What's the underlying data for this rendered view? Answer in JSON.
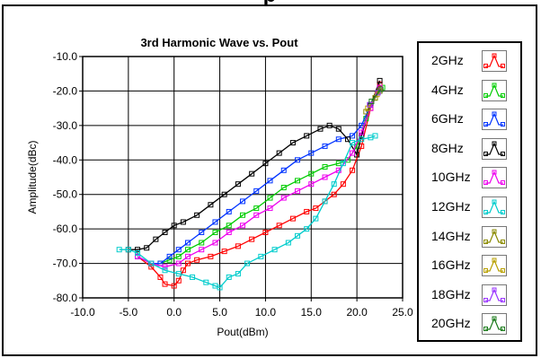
{
  "page_title_partial": "p",
  "chart_data": {
    "type": "scatter",
    "title": "3rd Harmonic Wave vs. Pout",
    "xlabel": "Pout(dBm)",
    "ylabel": "Amplitude(dBc)",
    "xlim": [
      -10,
      25
    ],
    "ylim": [
      -80,
      -10
    ],
    "x_ticks": [
      "-10.0",
      "-5.0",
      "0.0",
      "5.0",
      "10.0",
      "15.0",
      "20.0",
      "25.0"
    ],
    "y_ticks": [
      "-10.0",
      "-20.0",
      "-30.0",
      "-40.0",
      "-50.0",
      "-60.0",
      "-70.0",
      "-80.0"
    ],
    "grid": true,
    "legend_position": "right",
    "series": [
      {
        "name": "2GHz",
        "color": "#ff0000",
        "points": [
          [
            -4,
            -68
          ],
          [
            -2.5,
            -71
          ],
          [
            -1.5,
            -74
          ],
          [
            -1,
            -76
          ],
          [
            0,
            -76.5
          ],
          [
            0.5,
            -75
          ],
          [
            1,
            -72
          ],
          [
            1.5,
            -70
          ],
          [
            2.5,
            -69
          ],
          [
            4,
            -68
          ],
          [
            5.5,
            -66.5
          ],
          [
            7,
            -65
          ],
          [
            8.5,
            -63
          ],
          [
            10,
            -61
          ],
          [
            11.5,
            -59
          ],
          [
            13,
            -57
          ],
          [
            14.5,
            -55
          ],
          [
            15.5,
            -54
          ],
          [
            16.5,
            -52
          ],
          [
            17.5,
            -50
          ],
          [
            18.5,
            -47
          ],
          [
            19.5,
            -43
          ],
          [
            20.5,
            -36
          ],
          [
            21.5,
            -25
          ],
          [
            22.5,
            -18
          ]
        ]
      },
      {
        "name": "4GHz",
        "color": "#00cc00",
        "points": [
          [
            -4,
            -68
          ],
          [
            -2.5,
            -70
          ],
          [
            -1.5,
            -70
          ],
          [
            -0.5,
            -69
          ],
          [
            0.5,
            -68
          ],
          [
            1.5,
            -66
          ],
          [
            3,
            -64
          ],
          [
            4.5,
            -61
          ],
          [
            6,
            -59
          ],
          [
            7.5,
            -56
          ],
          [
            9,
            -54
          ],
          [
            10.5,
            -51
          ],
          [
            12,
            -48
          ],
          [
            13.5,
            -46
          ],
          [
            15,
            -44
          ],
          [
            16.5,
            -42
          ],
          [
            18,
            -41
          ],
          [
            19,
            -40
          ],
          [
            20,
            -36
          ],
          [
            21,
            -28
          ],
          [
            22,
            -22
          ],
          [
            22.8,
            -19
          ]
        ]
      },
      {
        "name": "6GHz",
        "color": "#0033ff",
        "points": [
          [
            -4,
            -68
          ],
          [
            -2.5,
            -70
          ],
          [
            -1.5,
            -70
          ],
          [
            -0.5,
            -68
          ],
          [
            0.5,
            -66
          ],
          [
            1.5,
            -64
          ],
          [
            3,
            -61
          ],
          [
            4.5,
            -58
          ],
          [
            6,
            -55
          ],
          [
            7.5,
            -52
          ],
          [
            9,
            -49
          ],
          [
            10.5,
            -46
          ],
          [
            12,
            -43
          ],
          [
            13.5,
            -40
          ],
          [
            15,
            -38
          ],
          [
            16.5,
            -36
          ],
          [
            18,
            -34
          ],
          [
            19.5,
            -33
          ],
          [
            20.5,
            -30
          ],
          [
            21.5,
            -24
          ],
          [
            22.5,
            -20
          ]
        ]
      },
      {
        "name": "8GHz",
        "color": "#000000",
        "points": [
          [
            -5,
            -66
          ],
          [
            -4,
            -66
          ],
          [
            -3,
            -65.5
          ],
          [
            -2,
            -63
          ],
          [
            -1,
            -61
          ],
          [
            0,
            -59
          ],
          [
            1,
            -58
          ],
          [
            2.5,
            -56
          ],
          [
            4,
            -53
          ],
          [
            5.5,
            -50
          ],
          [
            7,
            -47
          ],
          [
            8.5,
            -44
          ],
          [
            10,
            -41
          ],
          [
            11.5,
            -38
          ],
          [
            13,
            -35
          ],
          [
            14.5,
            -33
          ],
          [
            16,
            -31
          ],
          [
            17,
            -30
          ],
          [
            18,
            -31
          ],
          [
            19,
            -34
          ],
          [
            20,
            -38.5
          ],
          [
            20.5,
            -33
          ],
          [
            21.5,
            -24
          ],
          [
            22.5,
            -17
          ]
        ]
      },
      {
        "name": "10GHz",
        "color": "#ee00ee",
        "points": [
          [
            -4,
            -68
          ],
          [
            -2.5,
            -70
          ],
          [
            -1,
            -71
          ],
          [
            0.5,
            -70
          ],
          [
            1.5,
            -68
          ],
          [
            3,
            -66
          ],
          [
            4.5,
            -64
          ],
          [
            6,
            -61
          ],
          [
            7.5,
            -59
          ],
          [
            9,
            -56
          ],
          [
            10.5,
            -54
          ],
          [
            12,
            -51
          ],
          [
            13.5,
            -49
          ],
          [
            15,
            -47
          ],
          [
            16.5,
            -45
          ],
          [
            18,
            -43
          ],
          [
            19.5,
            -38
          ],
          [
            20.5,
            -32
          ],
          [
            21.5,
            -25
          ],
          [
            22.5,
            -19
          ]
        ]
      },
      {
        "name": "12GHz",
        "color": "#00cccc",
        "points": [
          [
            -6,
            -66
          ],
          [
            -5,
            -66
          ],
          [
            -4,
            -67
          ],
          [
            -2.5,
            -70
          ],
          [
            -1,
            -72
          ],
          [
            0.5,
            -73
          ],
          [
            2,
            -74
          ],
          [
            3.5,
            -75.5
          ],
          [
            4.5,
            -76.5
          ],
          [
            5,
            -77
          ],
          [
            6,
            -74
          ],
          [
            7,
            -73
          ],
          [
            8,
            -70
          ],
          [
            9.5,
            -68
          ],
          [
            11,
            -66
          ],
          [
            12.5,
            -64
          ],
          [
            13.5,
            -62
          ],
          [
            14.5,
            -60
          ],
          [
            15.5,
            -57
          ],
          [
            16.5,
            -52
          ],
          [
            17.5,
            -47
          ],
          [
            18.5,
            -41
          ],
          [
            19.5,
            -35
          ],
          [
            20.5,
            -34
          ],
          [
            21.5,
            -33.5
          ],
          [
            22,
            -33
          ]
        ]
      },
      {
        "name": "14GHz",
        "color": "#8a8a00",
        "points": [
          [
            21,
            -26
          ],
          [
            22,
            -22
          ],
          [
            22.5,
            -20
          ]
        ]
      },
      {
        "name": "16GHz",
        "color": "#b8a000",
        "points": [
          [
            21.2,
            -25
          ],
          [
            22.2,
            -21
          ]
        ]
      },
      {
        "name": "18GHz",
        "color": "#9933ff",
        "points": [
          [
            21.4,
            -24
          ],
          [
            22.3,
            -20.5
          ]
        ]
      },
      {
        "name": "20GHz",
        "color": "#1a7a1a",
        "points": [
          [
            21.6,
            -23
          ],
          [
            22.6,
            -19.5
          ]
        ]
      }
    ]
  }
}
